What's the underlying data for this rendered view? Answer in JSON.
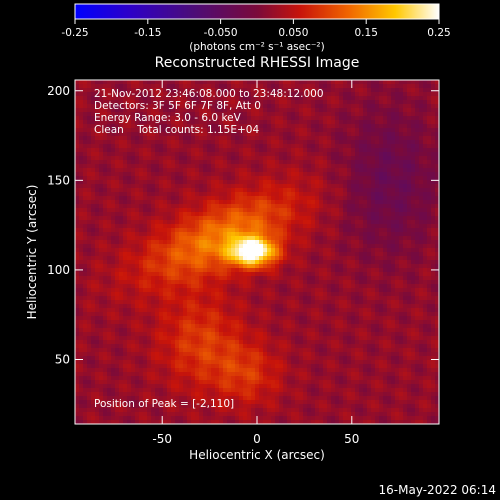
{
  "colorbar": {
    "ticks": [
      "-0.25",
      "-0.15",
      "-0.050",
      "0.050",
      "0.15",
      "0.25"
    ],
    "units": "(photons cm⁻² s⁻¹ asec⁻²)",
    "min": -0.25,
    "max": 0.25
  },
  "chart_data": {
    "type": "heatmap",
    "title": "Reconstructed RHESSI Image",
    "xlabel": "Heliocentric X (arcsec)",
    "ylabel": "Heliocentric Y (arcsec)",
    "xlim": [
      -96,
      96
    ],
    "ylim": [
      14,
      206
    ],
    "xticks": [
      "-50",
      "0",
      "50"
    ],
    "xtick_values": [
      -50,
      0,
      50
    ],
    "yticks": [
      "50",
      "100",
      "150",
      "200"
    ],
    "ytick_values": [
      50,
      100,
      150,
      200
    ],
    "colormap": "thermal (blue-purple-red-orange-yellow-white)",
    "peak": {
      "x": -2,
      "y": 110,
      "value": 0.25
    },
    "annotations": {
      "time_range": "21-Nov-2012 23:46:08.000 to 23:48:12.000",
      "detectors": "Detectors: 3F 5F 6F 7F 8F, Att 0",
      "energy": "Energy Range: 3.0 - 6.0 keV",
      "method": "Clean    Total counts: 1.15E+04",
      "peak_label": "Position of Peak = [-2,110]"
    }
  },
  "footer": {
    "date": "16-May-2022 06:14"
  }
}
